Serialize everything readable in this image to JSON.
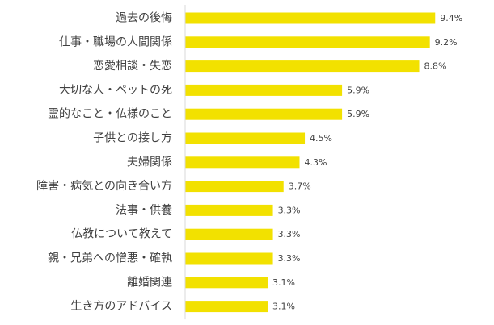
{
  "chart_data": {
    "type": "bar",
    "orientation": "horizontal",
    "title": "",
    "xlabel": "",
    "ylabel": "",
    "xlim": [
      0,
      10
    ],
    "grid": false,
    "legend": "none",
    "bar_color": "#f2e100",
    "categories": [
      "過去の後悔",
      "仕事・職場の人間関係",
      "恋愛相談・失恋",
      "大切な人・ペットの死",
      "霊的なこと・仏様のこと",
      "子供との接し方",
      "夫婦関係",
      "障害・病気との向き合い方",
      "法事・供養",
      "仏教について教えて",
      "親・兄弟への憎悪・確執",
      "離婚関連",
      "生き方のアドバイス"
    ],
    "values": [
      9.4,
      9.2,
      8.8,
      5.9,
      5.9,
      4.5,
      4.3,
      3.7,
      3.3,
      3.3,
      3.3,
      3.1,
      3.1
    ],
    "value_labels": [
      "9.4%",
      "9.2%",
      "8.8%",
      "5.9%",
      "5.9%",
      "4.5%",
      "4.3%",
      "3.7%",
      "3.3%",
      "3.3%",
      "3.3%",
      "3.1%",
      "3.1%"
    ]
  }
}
